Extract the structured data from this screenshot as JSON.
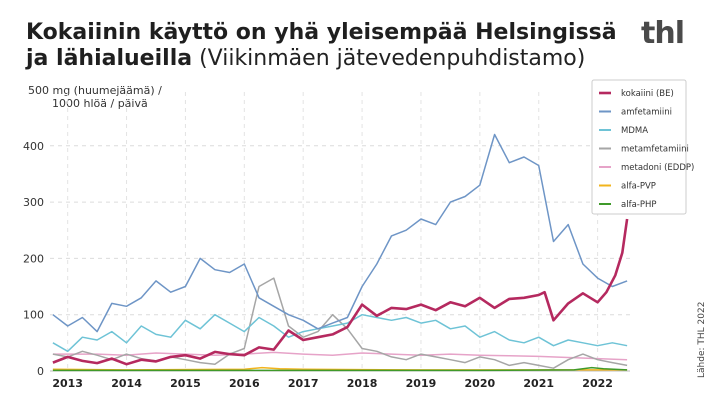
{
  "title_bold": "Kokaiinin käyttö on yhä yleisempää Helsingissä ja lähialueilla",
  "title_normal": " (Viikinmäen jätevedenpuhdistamo)",
  "logo": "thl",
  "source": "Lähde: THL 2022",
  "colors": {
    "kokaiini": "#b5295f",
    "amfetamiini": "#6e95c6",
    "mdma": "#6ec3d6",
    "metamfetamiini": "#a6a6a6",
    "metadoni": "#e6a3c8",
    "alfapvp": "#f2b41c",
    "alfaphp": "#3f9a2a"
  },
  "chart_data": {
    "type": "line",
    "ylabel": "500 mg (huumejäämä) / 1000 hlöä / päivä",
    "ylim": [
      0,
      460
    ],
    "yticks": [
      0,
      100,
      200,
      300,
      400
    ],
    "xlim": [
      2012.7,
      2022.55
    ],
    "xticks": [
      2013,
      2014,
      2015,
      2016,
      2017,
      2018,
      2019,
      2020,
      2021,
      2022
    ],
    "grid": true,
    "legend": "top-right",
    "series": [
      {
        "name": "kokaiini (BE)",
        "key": "kokaiini",
        "x": [
          2012.75,
          2013.0,
          2013.25,
          2013.5,
          2013.75,
          2014.0,
          2014.25,
          2014.5,
          2014.75,
          2015.0,
          2015.25,
          2015.5,
          2015.75,
          2016.0,
          2016.25,
          2016.5,
          2016.75,
          2017.0,
          2017.25,
          2017.5,
          2017.75,
          2018.0,
          2018.25,
          2018.5,
          2018.75,
          2019.0,
          2019.25,
          2019.5,
          2019.75,
          2020.0,
          2020.25,
          2020.5,
          2020.75,
          2021.0,
          2021.1,
          2021.25,
          2021.5,
          2021.75,
          2022.0,
          2022.15,
          2022.3,
          2022.42,
          2022.5
        ],
        "y": [
          15,
          25,
          18,
          14,
          22,
          12,
          20,
          17,
          25,
          28,
          22,
          34,
          30,
          28,
          42,
          38,
          72,
          55,
          60,
          65,
          78,
          118,
          98,
          112,
          110,
          118,
          108,
          122,
          115,
          130,
          112,
          128,
          130,
          135,
          140,
          90,
          120,
          138,
          122,
          140,
          170,
          210,
          270
        ]
      },
      {
        "name": "amfetamiini",
        "key": "amfetamiini",
        "x": [
          2012.75,
          2013.0,
          2013.25,
          2013.5,
          2013.75,
          2014.0,
          2014.25,
          2014.5,
          2014.75,
          2015.0,
          2015.25,
          2015.5,
          2015.75,
          2016.0,
          2016.25,
          2016.5,
          2016.75,
          2017.0,
          2017.25,
          2017.5,
          2017.75,
          2018.0,
          2018.25,
          2018.5,
          2018.75,
          2019.0,
          2019.25,
          2019.5,
          2019.75,
          2020.0,
          2020.25,
          2020.5,
          2020.75,
          2021.0,
          2021.25,
          2021.5,
          2021.75,
          2022.0,
          2022.25,
          2022.5
        ],
        "y": [
          100,
          80,
          95,
          70,
          120,
          115,
          130,
          160,
          140,
          150,
          200,
          180,
          175,
          190,
          130,
          115,
          100,
          90,
          75,
          85,
          95,
          150,
          190,
          240,
          250,
          270,
          260,
          300,
          310,
          330,
          420,
          370,
          380,
          365,
          230,
          260,
          190,
          165,
          150,
          160
        ]
      },
      {
        "name": "MDMA",
        "key": "mdma",
        "x": [
          2012.75,
          2013.0,
          2013.25,
          2013.5,
          2013.75,
          2014.0,
          2014.25,
          2014.5,
          2014.75,
          2015.0,
          2015.25,
          2015.5,
          2015.75,
          2016.0,
          2016.25,
          2016.5,
          2016.75,
          2017.0,
          2017.25,
          2017.5,
          2017.75,
          2018.0,
          2018.25,
          2018.5,
          2018.75,
          2019.0,
          2019.25,
          2019.5,
          2019.75,
          2020.0,
          2020.25,
          2020.5,
          2020.75,
          2021.0,
          2021.25,
          2021.5,
          2021.75,
          2022.0,
          2022.25,
          2022.5
        ],
        "y": [
          50,
          35,
          60,
          55,
          70,
          50,
          80,
          65,
          60,
          90,
          75,
          100,
          85,
          70,
          95,
          80,
          60,
          70,
          75,
          80,
          85,
          100,
          95,
          90,
          95,
          85,
          90,
          75,
          80,
          60,
          70,
          55,
          50,
          60,
          45,
          55,
          50,
          45,
          50,
          45
        ]
      },
      {
        "name": "metamfetamiini",
        "key": "metamfetamiini",
        "x": [
          2012.75,
          2013.0,
          2013.25,
          2013.5,
          2013.75,
          2014.0,
          2014.25,
          2014.5,
          2014.75,
          2015.0,
          2015.25,
          2015.5,
          2015.75,
          2016.0,
          2016.25,
          2016.5,
          2016.75,
          2017.0,
          2017.25,
          2017.5,
          2017.75,
          2018.0,
          2018.25,
          2018.5,
          2018.75,
          2019.0,
          2019.25,
          2019.5,
          2019.75,
          2020.0,
          2020.25,
          2020.5,
          2020.75,
          2021.0,
          2021.25,
          2021.5,
          2021.75,
          2022.0,
          2022.25,
          2022.5
        ],
        "y": [
          30,
          25,
          35,
          28,
          20,
          30,
          22,
          18,
          25,
          20,
          15,
          12,
          30,
          40,
          150,
          165,
          80,
          60,
          70,
          100,
          75,
          40,
          35,
          25,
          20,
          30,
          25,
          20,
          15,
          25,
          20,
          10,
          15,
          10,
          5,
          20,
          30,
          20,
          15,
          10
        ]
      },
      {
        "name": "metadoni (EDDP)",
        "key": "metadoni",
        "x": [
          2012.75,
          2013.5,
          2014.0,
          2014.5,
          2015.0,
          2015.5,
          2016.0,
          2016.5,
          2017.0,
          2017.5,
          2018.0,
          2018.5,
          2019.0,
          2019.5,
          2020.0,
          2020.5,
          2021.0,
          2021.5,
          2022.0,
          2022.5
        ],
        "y": [
          30,
          30,
          28,
          32,
          30,
          28,
          30,
          33,
          30,
          28,
          32,
          30,
          28,
          30,
          28,
          27,
          26,
          24,
          22,
          20
        ]
      },
      {
        "name": "alfa-PVP",
        "key": "alfapvp",
        "x": [
          2012.75,
          2014.0,
          2016.0,
          2016.3,
          2016.6,
          2017.0,
          2019.0,
          2021.0,
          2022.5
        ],
        "y": [
          3,
          2,
          3,
          6,
          4,
          3,
          2,
          2,
          2
        ]
      },
      {
        "name": "alfa-PHP",
        "key": "alfaphp",
        "x": [
          2012.75,
          2016.0,
          2018.0,
          2020.0,
          2021.6,
          2021.9,
          2022.1,
          2022.5
        ],
        "y": [
          1,
          1,
          1,
          1,
          2,
          6,
          4,
          2
        ]
      }
    ]
  }
}
